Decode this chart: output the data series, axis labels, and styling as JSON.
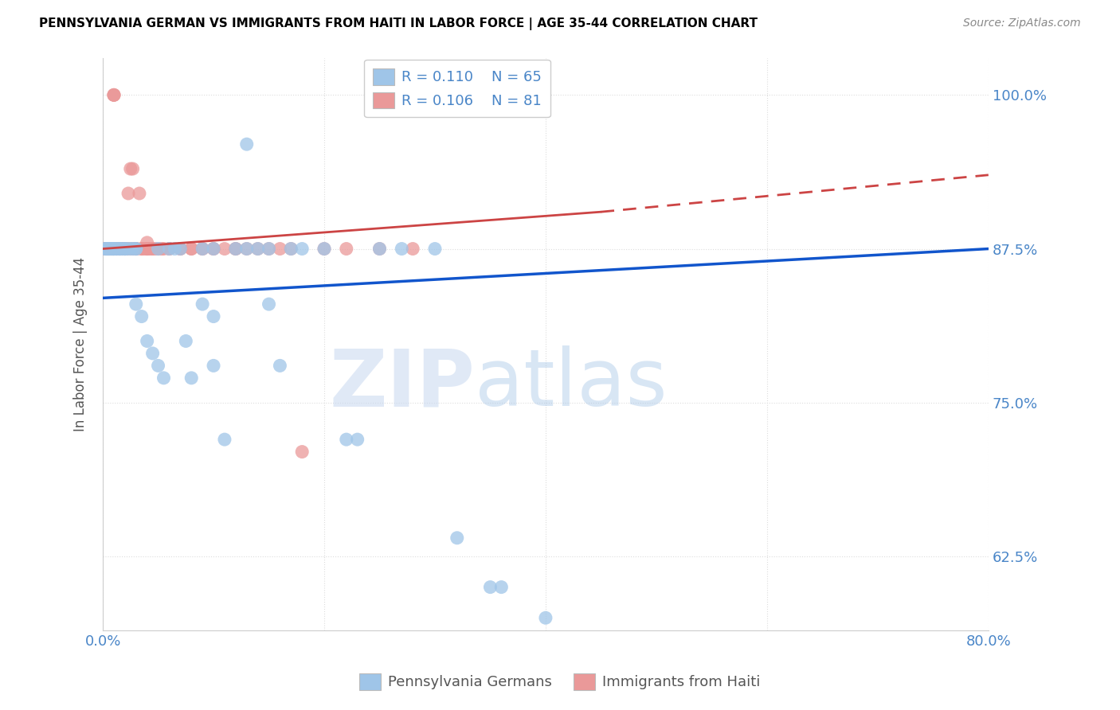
{
  "title": "PENNSYLVANIA GERMAN VS IMMIGRANTS FROM HAITI IN LABOR FORCE | AGE 35-44 CORRELATION CHART",
  "source": "Source: ZipAtlas.com",
  "ylabel": "In Labor Force | Age 35-44",
  "x_min": 0.0,
  "x_max": 0.8,
  "y_min": 0.565,
  "y_max": 1.03,
  "x_ticks": [
    0.0,
    0.2,
    0.4,
    0.6,
    0.8
  ],
  "x_tick_labels": [
    "0.0%",
    "",
    "",
    "",
    "80.0%"
  ],
  "y_ticks": [
    0.625,
    0.75,
    0.875,
    1.0
  ],
  "y_tick_labels": [
    "62.5%",
    "75.0%",
    "87.5%",
    "100.0%"
  ],
  "legend_r_blue": "0.110",
  "legend_n_blue": "65",
  "legend_r_pink": "0.106",
  "legend_n_pink": "81",
  "blue_color": "#9fc5e8",
  "pink_color": "#ea9999",
  "trendline_blue_color": "#1155cc",
  "trendline_pink_color": "#cc4444",
  "blue_scatter": [
    [
      0.002,
      0.875
    ],
    [
      0.003,
      0.875
    ],
    [
      0.003,
      0.875
    ],
    [
      0.004,
      0.875
    ],
    [
      0.004,
      0.875
    ],
    [
      0.005,
      0.875
    ],
    [
      0.006,
      0.875
    ],
    [
      0.006,
      0.875
    ],
    [
      0.007,
      0.875
    ],
    [
      0.008,
      0.875
    ],
    [
      0.008,
      0.875
    ],
    [
      0.009,
      0.875
    ],
    [
      0.009,
      0.875
    ],
    [
      0.01,
      0.875
    ],
    [
      0.01,
      0.875
    ],
    [
      0.012,
      0.875
    ],
    [
      0.012,
      0.875
    ],
    [
      0.015,
      0.875
    ],
    [
      0.015,
      0.875
    ],
    [
      0.016,
      0.875
    ],
    [
      0.018,
      0.875
    ],
    [
      0.02,
      0.875
    ],
    [
      0.02,
      0.875
    ],
    [
      0.022,
      0.875
    ],
    [
      0.025,
      0.875
    ],
    [
      0.027,
      0.875
    ],
    [
      0.03,
      0.875
    ],
    [
      0.03,
      0.875
    ],
    [
      0.03,
      0.83
    ],
    [
      0.035,
      0.82
    ],
    [
      0.04,
      0.8
    ],
    [
      0.045,
      0.79
    ],
    [
      0.05,
      0.78
    ],
    [
      0.05,
      0.875
    ],
    [
      0.055,
      0.77
    ],
    [
      0.06,
      0.875
    ],
    [
      0.065,
      0.875
    ],
    [
      0.07,
      0.875
    ],
    [
      0.075,
      0.8
    ],
    [
      0.08,
      0.77
    ],
    [
      0.09,
      0.875
    ],
    [
      0.09,
      0.83
    ],
    [
      0.1,
      0.875
    ],
    [
      0.1,
      0.82
    ],
    [
      0.1,
      0.78
    ],
    [
      0.11,
      0.72
    ],
    [
      0.12,
      0.875
    ],
    [
      0.13,
      0.875
    ],
    [
      0.13,
      0.96
    ],
    [
      0.14,
      0.875
    ],
    [
      0.15,
      0.875
    ],
    [
      0.15,
      0.83
    ],
    [
      0.16,
      0.78
    ],
    [
      0.17,
      0.875
    ],
    [
      0.18,
      0.875
    ],
    [
      0.2,
      0.875
    ],
    [
      0.22,
      0.72
    ],
    [
      0.23,
      0.72
    ],
    [
      0.25,
      0.875
    ],
    [
      0.27,
      0.875
    ],
    [
      0.3,
      0.875
    ],
    [
      0.32,
      0.64
    ],
    [
      0.35,
      0.6
    ],
    [
      0.36,
      0.6
    ],
    [
      0.4,
      0.575
    ]
  ],
  "pink_scatter": [
    [
      0.002,
      0.875
    ],
    [
      0.003,
      0.875
    ],
    [
      0.003,
      0.875
    ],
    [
      0.004,
      0.875
    ],
    [
      0.004,
      0.875
    ],
    [
      0.005,
      0.875
    ],
    [
      0.005,
      0.875
    ],
    [
      0.006,
      0.875
    ],
    [
      0.006,
      0.875
    ],
    [
      0.007,
      0.875
    ],
    [
      0.007,
      0.875
    ],
    [
      0.008,
      0.875
    ],
    [
      0.008,
      0.875
    ],
    [
      0.009,
      0.875
    ],
    [
      0.009,
      0.875
    ],
    [
      0.01,
      0.875
    ],
    [
      0.01,
      0.875
    ],
    [
      0.01,
      0.875
    ],
    [
      0.01,
      1.0
    ],
    [
      0.01,
      1.0
    ],
    [
      0.01,
      1.0
    ],
    [
      0.012,
      0.875
    ],
    [
      0.012,
      0.875
    ],
    [
      0.013,
      0.875
    ],
    [
      0.014,
      0.875
    ],
    [
      0.015,
      0.875
    ],
    [
      0.015,
      0.875
    ],
    [
      0.016,
      0.875
    ],
    [
      0.017,
      0.875
    ],
    [
      0.018,
      0.875
    ],
    [
      0.02,
      0.875
    ],
    [
      0.02,
      0.875
    ],
    [
      0.02,
      0.875
    ],
    [
      0.022,
      0.875
    ],
    [
      0.023,
      0.92
    ],
    [
      0.025,
      0.875
    ],
    [
      0.025,
      0.94
    ],
    [
      0.027,
      0.94
    ],
    [
      0.028,
      0.875
    ],
    [
      0.03,
      0.875
    ],
    [
      0.03,
      0.875
    ],
    [
      0.03,
      0.875
    ],
    [
      0.033,
      0.92
    ],
    [
      0.035,
      0.875
    ],
    [
      0.035,
      0.875
    ],
    [
      0.037,
      0.875
    ],
    [
      0.04,
      0.875
    ],
    [
      0.04,
      0.875
    ],
    [
      0.04,
      0.88
    ],
    [
      0.04,
      0.875
    ],
    [
      0.042,
      0.875
    ],
    [
      0.044,
      0.875
    ],
    [
      0.045,
      0.875
    ],
    [
      0.047,
      0.875
    ],
    [
      0.05,
      0.875
    ],
    [
      0.05,
      0.875
    ],
    [
      0.053,
      0.875
    ],
    [
      0.055,
      0.875
    ],
    [
      0.06,
      0.875
    ],
    [
      0.06,
      0.875
    ],
    [
      0.07,
      0.875
    ],
    [
      0.07,
      0.875
    ],
    [
      0.08,
      0.875
    ],
    [
      0.08,
      0.875
    ],
    [
      0.09,
      0.875
    ],
    [
      0.09,
      0.875
    ],
    [
      0.1,
      0.875
    ],
    [
      0.1,
      0.875
    ],
    [
      0.11,
      0.875
    ],
    [
      0.12,
      0.875
    ],
    [
      0.12,
      0.875
    ],
    [
      0.13,
      0.875
    ],
    [
      0.14,
      0.875
    ],
    [
      0.15,
      0.875
    ],
    [
      0.16,
      0.875
    ],
    [
      0.17,
      0.875
    ],
    [
      0.18,
      0.71
    ],
    [
      0.2,
      0.875
    ],
    [
      0.22,
      0.875
    ],
    [
      0.25,
      0.875
    ],
    [
      0.28,
      0.875
    ]
  ],
  "blue_trendline_solid": [
    [
      0.0,
      0.835
    ],
    [
      0.8,
      0.875
    ]
  ],
  "pink_trendline_solid": [
    [
      0.0,
      0.875
    ],
    [
      0.45,
      0.905
    ]
  ],
  "pink_trendline_dashed": [
    [
      0.45,
      0.905
    ],
    [
      0.8,
      0.935
    ]
  ],
  "watermark_zip": "ZIP",
  "watermark_atlas": "atlas",
  "background_color": "#ffffff",
  "grid_color": "#dddddd",
  "title_color": "#000000",
  "tick_color": "#4a86c8",
  "legend_text_color": "#4a86c8"
}
